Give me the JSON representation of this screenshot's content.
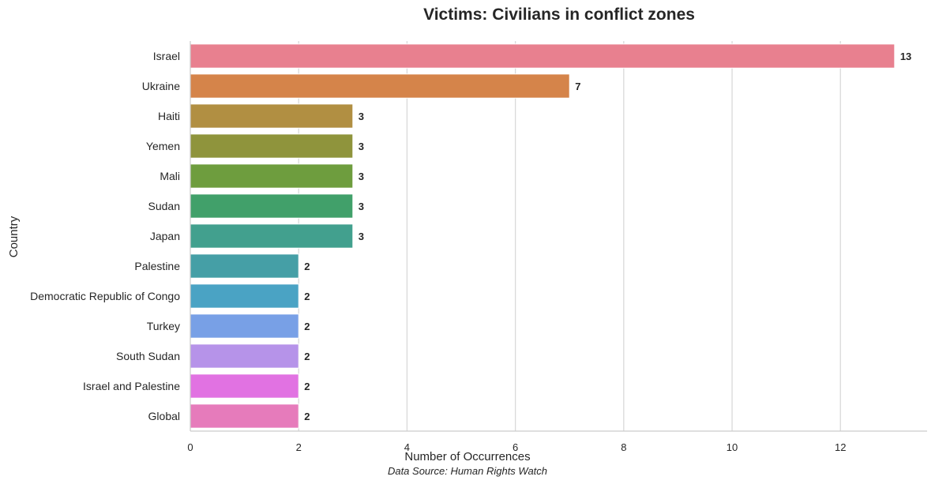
{
  "chart_data": {
    "type": "bar",
    "orientation": "horizontal",
    "title": "Victims: Civilians in conflict zones",
    "xlabel": "Number of Occurrences",
    "ylabel": "Country",
    "source": "Data Source: Human Rights Watch",
    "xlim": [
      0,
      13.6
    ],
    "xticks": [
      0,
      2,
      4,
      6,
      8,
      10,
      12
    ],
    "grid": "vertical",
    "categories": [
      "Israel",
      "Ukraine",
      "Haiti",
      "Yemen",
      "Mali",
      "Sudan",
      "Japan",
      "Palestine",
      "Democratic Republic of Congo",
      "Turkey",
      "South Sudan",
      "Israel and Palestine",
      "Global"
    ],
    "values": [
      13,
      7,
      3,
      3,
      3,
      3,
      3,
      2,
      2,
      2,
      2,
      2,
      2
    ],
    "colors": [
      "#e8808f",
      "#d5844a",
      "#b18f42",
      "#8f943c",
      "#6e9d3e",
      "#41a06a",
      "#42a08e",
      "#459fa6",
      "#4aa3c4",
      "#78a0e6",
      "#b693e9",
      "#e172e2",
      "#e67bbb"
    ]
  }
}
